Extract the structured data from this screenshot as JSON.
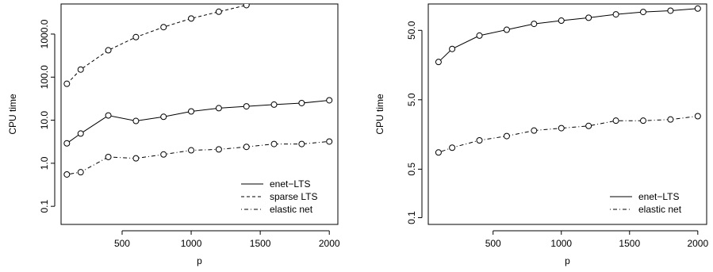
{
  "chart_data": [
    {
      "type": "line",
      "log_y": true,
      "xlabel": "p",
      "ylabel": "CPU time",
      "legend": "bottomright",
      "x": [
        100,
        200,
        400,
        600,
        800,
        1000,
        1200,
        1400,
        1600,
        1800,
        2000
      ],
      "xlim": [
        58,
        2062
      ],
      "xticks": [
        500,
        1000,
        1500,
        2000
      ],
      "ylim": [
        0.038,
        5000
      ],
      "yticks": [
        0.1,
        {
          "value": 1,
          "label": "1.0"
        },
        {
          "value": 10,
          "label": "10.0"
        },
        {
          "value": 100,
          "label": "100.0"
        },
        {
          "value": 1000,
          "label": "1000.0"
        }
      ],
      "series": [
        {
          "name": "enet−LTS",
          "color": "#000000",
          "linestyle": "solid",
          "values": [
            2.9,
            4.9,
            12.9,
            9.6,
            12,
            16,
            19,
            21,
            23,
            25,
            29
          ]
        },
        {
          "name": "sparse LTS",
          "color": "#000000",
          "linestyle": "dashed",
          "values": [
            70,
            150,
            420,
            850,
            1450,
            2300,
            3300,
            4700,
            null,
            null,
            null
          ]
        },
        {
          "name": "elastic net",
          "color": "#000000",
          "linestyle": "dashdot",
          "values": [
            0.55,
            0.62,
            1.4,
            1.3,
            1.6,
            2.0,
            2.1,
            2.4,
            2.8,
            2.8,
            3.2
          ]
        }
      ]
    },
    {
      "type": "line",
      "log_y": true,
      "xlabel": "p",
      "ylabel": "CPU time",
      "legend": "bottomright",
      "x": [
        100,
        200,
        400,
        600,
        800,
        1000,
        1200,
        1400,
        1600,
        1800,
        2000
      ],
      "xlim": [
        25,
        2065
      ],
      "xticks": [
        500,
        1000,
        1500,
        2000
      ],
      "ylim": [
        0.08,
        120
      ],
      "yticks": [
        0.1,
        0.5,
        {
          "value": 5,
          "label": "5.0"
        },
        {
          "value": 50,
          "label": "50.0"
        }
      ],
      "series": [
        {
          "name": "enet−LTS",
          "color": "#000000",
          "linestyle": "solid",
          "values": [
            17.5,
            27,
            42,
            51,
            62,
            69,
            76,
            85,
            92,
            96,
            103
          ]
        },
        {
          "name": "elastic net",
          "color": "#000000",
          "linestyle": "dashdot",
          "values": [
            0.87,
            1.02,
            1.3,
            1.5,
            1.8,
            1.95,
            2.1,
            2.5,
            2.5,
            2.6,
            2.9
          ]
        }
      ]
    }
  ]
}
